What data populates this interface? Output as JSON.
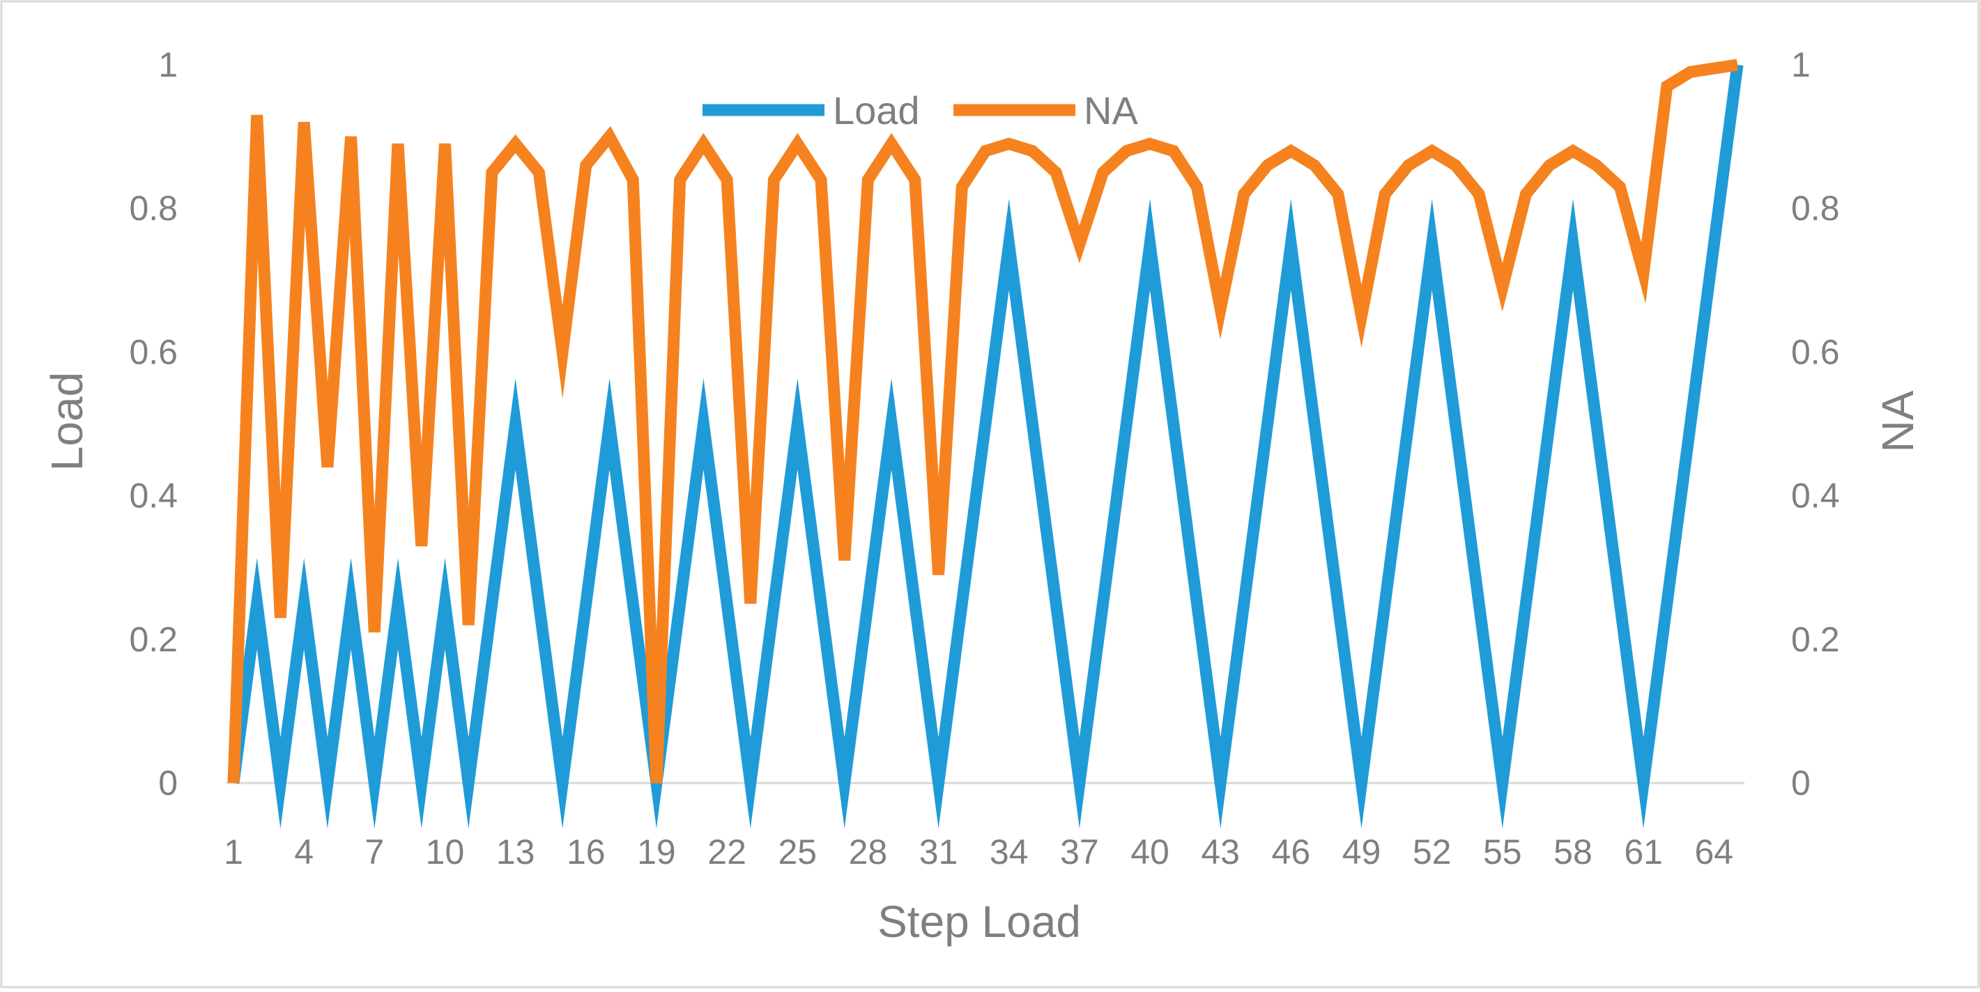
{
  "chart_data": {
    "type": "line",
    "xlabel": "Step Load",
    "ylabel_left": "Load",
    "ylabel_right": "NA",
    "ylim_left": [
      0,
      1
    ],
    "ylim_right": [
      0,
      1
    ],
    "y_ticks_left": [
      "0",
      "0.2",
      "0.4",
      "0.6",
      "0.8",
      "1"
    ],
    "y_ticks_right": [
      "0",
      "0.2",
      "0.4",
      "0.6",
      "0.8",
      "1"
    ],
    "x_tick_labels": [
      "1",
      "4",
      "7",
      "10",
      "13",
      "16",
      "19",
      "22",
      "25",
      "28",
      "31",
      "34",
      "37",
      "40",
      "43",
      "46",
      "49",
      "52",
      "55",
      "58",
      "61",
      "64"
    ],
    "x": [
      1,
      2,
      3,
      4,
      5,
      6,
      7,
      8,
      9,
      10,
      11,
      12,
      13,
      14,
      15,
      16,
      17,
      18,
      19,
      20,
      21,
      22,
      23,
      24,
      25,
      26,
      27,
      28,
      29,
      30,
      31,
      32,
      33,
      34,
      35,
      36,
      37,
      38,
      39,
      40,
      41,
      42,
      43,
      44,
      45,
      46,
      47,
      48,
      49,
      50,
      51,
      52,
      53,
      54,
      55,
      56,
      57,
      58,
      59,
      60,
      61,
      62,
      63,
      64,
      65
    ],
    "grid": false,
    "legend_position": "top-center",
    "series": [
      {
        "name": "Load",
        "axis": "left",
        "color": "#1f9bd7",
        "values": [
          0,
          0.25,
          0,
          0.25,
          0,
          0.25,
          0,
          0.25,
          0,
          0.25,
          0,
          0.25,
          0.5,
          0.25,
          0,
          0.25,
          0.5,
          0.25,
          0,
          0.25,
          0.5,
          0.25,
          0,
          0.25,
          0.5,
          0.25,
          0,
          0.25,
          0.5,
          0.25,
          0,
          0.25,
          0.5,
          0.75,
          0.5,
          0.25,
          0,
          0.25,
          0.5,
          0.75,
          0.5,
          0.25,
          0,
          0.25,
          0.5,
          0.75,
          0.5,
          0.25,
          0,
          0.25,
          0.5,
          0.75,
          0.5,
          0.25,
          0,
          0.25,
          0.5,
          0.75,
          0.5,
          0.25,
          0,
          0.25,
          0.5,
          0.75,
          1
        ]
      },
      {
        "name": "NA",
        "axis": "right",
        "color": "#f5821f",
        "values": [
          0,
          0.93,
          0.23,
          0.92,
          0.44,
          0.9,
          0.21,
          0.89,
          0.33,
          0.89,
          0.22,
          0.85,
          0.89,
          0.85,
          0.6,
          0.86,
          0.9,
          0.84,
          0,
          0.84,
          0.89,
          0.84,
          0.25,
          0.84,
          0.89,
          0.84,
          0.31,
          0.84,
          0.89,
          0.84,
          0.29,
          0.83,
          0.88,
          0.89,
          0.88,
          0.85,
          0.75,
          0.85,
          0.88,
          0.89,
          0.88,
          0.83,
          0.66,
          0.82,
          0.86,
          0.88,
          0.86,
          0.82,
          0.65,
          0.82,
          0.86,
          0.88,
          0.86,
          0.82,
          0.69,
          0.82,
          0.86,
          0.88,
          0.86,
          0.83,
          0.71,
          0.97,
          0.99,
          0.995,
          1
        ]
      }
    ]
  }
}
